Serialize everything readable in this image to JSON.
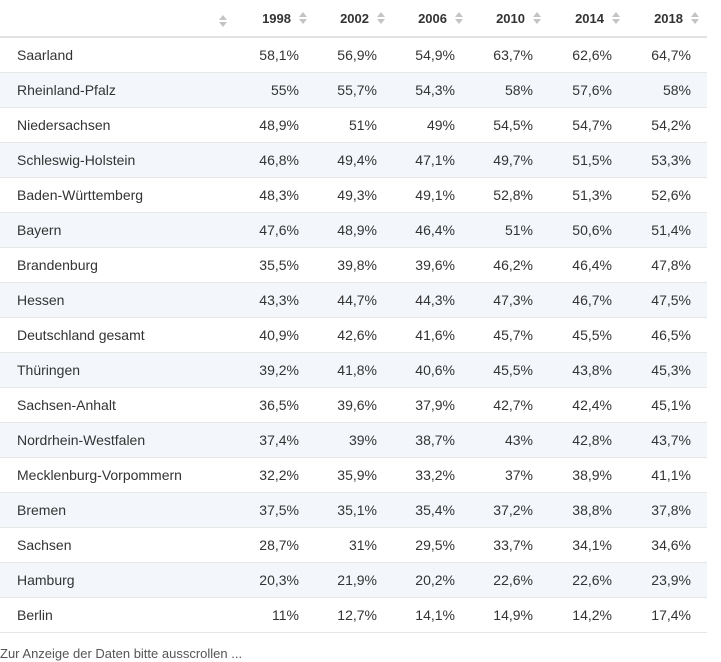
{
  "table": {
    "columns": [
      "",
      "1998",
      "2002",
      "2006",
      "2010",
      "2014",
      "2018"
    ],
    "rows": [
      {
        "name": "Saarland",
        "values": [
          "58,1%",
          "56,9%",
          "54,9%",
          "63,7%",
          "62,6%",
          "64,7%"
        ]
      },
      {
        "name": "Rheinland-Pfalz",
        "values": [
          "55%",
          "55,7%",
          "54,3%",
          "58%",
          "57,6%",
          "58%"
        ]
      },
      {
        "name": "Niedersachsen",
        "values": [
          "48,9%",
          "51%",
          "49%",
          "54,5%",
          "54,7%",
          "54,2%"
        ]
      },
      {
        "name": "Schleswig-Holstein",
        "values": [
          "46,8%",
          "49,4%",
          "47,1%",
          "49,7%",
          "51,5%",
          "53,3%"
        ]
      },
      {
        "name": "Baden-Württemberg",
        "values": [
          "48,3%",
          "49,3%",
          "49,1%",
          "52,8%",
          "51,3%",
          "52,6%"
        ]
      },
      {
        "name": "Bayern",
        "values": [
          "47,6%",
          "48,9%",
          "46,4%",
          "51%",
          "50,6%",
          "51,4%"
        ]
      },
      {
        "name": "Brandenburg",
        "values": [
          "35,5%",
          "39,8%",
          "39,6%",
          "46,2%",
          "46,4%",
          "47,8%"
        ]
      },
      {
        "name": "Hessen",
        "values": [
          "43,3%",
          "44,7%",
          "44,3%",
          "47,3%",
          "46,7%",
          "47,5%"
        ]
      },
      {
        "name": "Deutschland gesamt",
        "values": [
          "40,9%",
          "42,6%",
          "41,6%",
          "45,7%",
          "45,5%",
          "46,5%"
        ]
      },
      {
        "name": "Thüringen",
        "values": [
          "39,2%",
          "41,8%",
          "40,6%",
          "45,5%",
          "43,8%",
          "45,3%"
        ]
      },
      {
        "name": "Sachsen-Anhalt",
        "values": [
          "36,5%",
          "39,6%",
          "37,9%",
          "42,7%",
          "42,4%",
          "45,1%"
        ]
      },
      {
        "name": "Nordrhein-Westfalen",
        "values": [
          "37,4%",
          "39%",
          "38,7%",
          "43%",
          "42,8%",
          "43,7%"
        ]
      },
      {
        "name": "Mecklenburg-Vorpommern",
        "values": [
          "32,2%",
          "35,9%",
          "33,2%",
          "37%",
          "38,9%",
          "41,1%"
        ]
      },
      {
        "name": "Bremen",
        "values": [
          "37,5%",
          "35,1%",
          "35,4%",
          "37,2%",
          "38,8%",
          "37,8%"
        ]
      },
      {
        "name": "Sachsen",
        "values": [
          "28,7%",
          "31%",
          "29,5%",
          "33,7%",
          "34,1%",
          "34,6%"
        ]
      },
      {
        "name": "Hamburg",
        "values": [
          "20,3%",
          "21,9%",
          "20,2%",
          "22,6%",
          "22,6%",
          "23,9%"
        ]
      },
      {
        "name": "Berlin",
        "values": [
          "11%",
          "12,7%",
          "14,1%",
          "14,9%",
          "14,2%",
          "17,4%"
        ]
      }
    ]
  },
  "icons": {
    "sort": "sort-icon"
  },
  "colors": {
    "stripe": "#f3f7fb",
    "border": "#e6e6e6",
    "text": "#333333",
    "sort_arrow": "#c4c4c4"
  },
  "footnote": {
    "text": "Zur Anzeige der Daten bitte ausscrollen ..."
  }
}
